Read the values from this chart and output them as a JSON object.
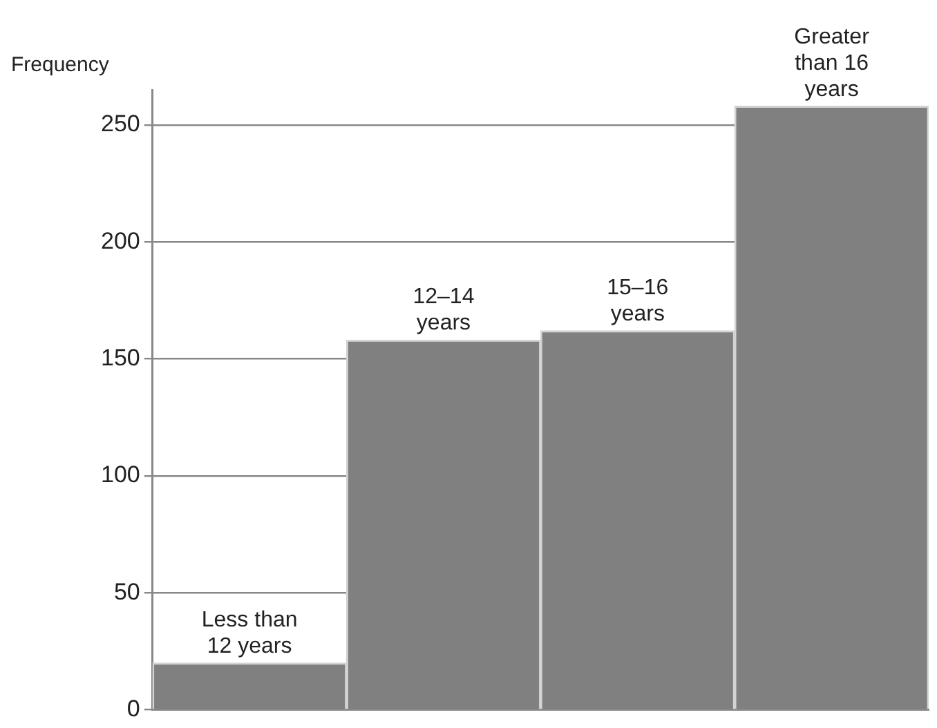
{
  "chart_data": {
    "type": "bar",
    "ylabel": "Frequency",
    "categories": [
      "Less than 12 years",
      "12–14 years",
      "15–16 years",
      "Greater than 16 years"
    ],
    "values": [
      20,
      158,
      162,
      258
    ],
    "color": "#808080",
    "ylim": [
      0,
      265
    ],
    "yticks": [
      0,
      50,
      100,
      150,
      200,
      250
    ],
    "grid": "y",
    "tick_labels": "y",
    "legend": false
  }
}
